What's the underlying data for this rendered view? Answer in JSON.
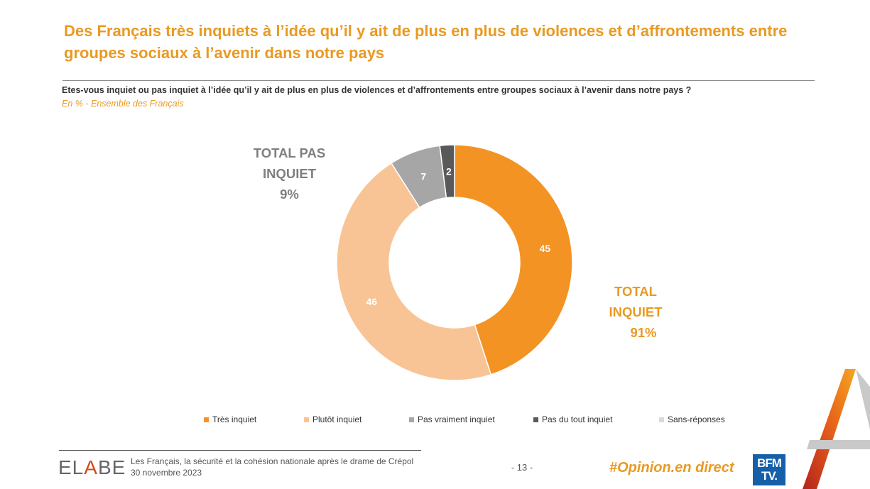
{
  "header": {
    "title": "Des Français très inquiets à l’idée qu’il y ait de plus en plus de violences et d’affrontements entre groupes sociaux à l’avenir dans notre pays",
    "question": "Etes-vous inquiet ou pas inquiet à l’idée qu’il y ait de plus en plus de violences et d’affrontements entre groupes sociaux à l’avenir dans notre pays ?",
    "subtitle": "En % - Ensemble des Français"
  },
  "totals": {
    "negative": {
      "line1": "TOTAL PAS",
      "line2": "INQUIET",
      "value": "9%"
    },
    "positive": {
      "line1": "TOTAL",
      "line2": "INQUIET",
      "value": "91%"
    }
  },
  "chart_data": {
    "type": "pie",
    "variant": "donut",
    "title": "Etes-vous inquiet ou pas inquiet à l’idée qu’il y ait de plus en plus de violences et d’affrontements entre groupes sociaux à l’avenir dans notre pays ?",
    "unit": "%",
    "categories": [
      "Très inquiet",
      "Plutôt inquiet",
      "Pas vraiment inquiet",
      "Pas du tout inquiet",
      "Sans-réponses"
    ],
    "values": [
      45,
      46,
      7,
      2,
      0
    ],
    "labels": [
      "45",
      "46",
      "7",
      "2",
      ""
    ],
    "colors": [
      "#F39323",
      "#F8C495",
      "#A6A6A6",
      "#595959",
      "#D9D9D9"
    ],
    "label_colors": [
      "#ffffff",
      "#ffffff",
      "#ffffff",
      "#ffffff",
      "#ffffff"
    ],
    "legend_position": "bottom"
  },
  "footer": {
    "brand_prefix": "EL",
    "brand_accent": "A",
    "brand_suffix": "BE",
    "study": "Les Français, la sécurité et la cohésion nationale après le drame de Crépol",
    "date": "30 novembre 2023",
    "page": "- 13 -",
    "hashtag": "#Opinion.en direct",
    "partner_line1": "BFM",
    "partner_line2": "TV."
  }
}
